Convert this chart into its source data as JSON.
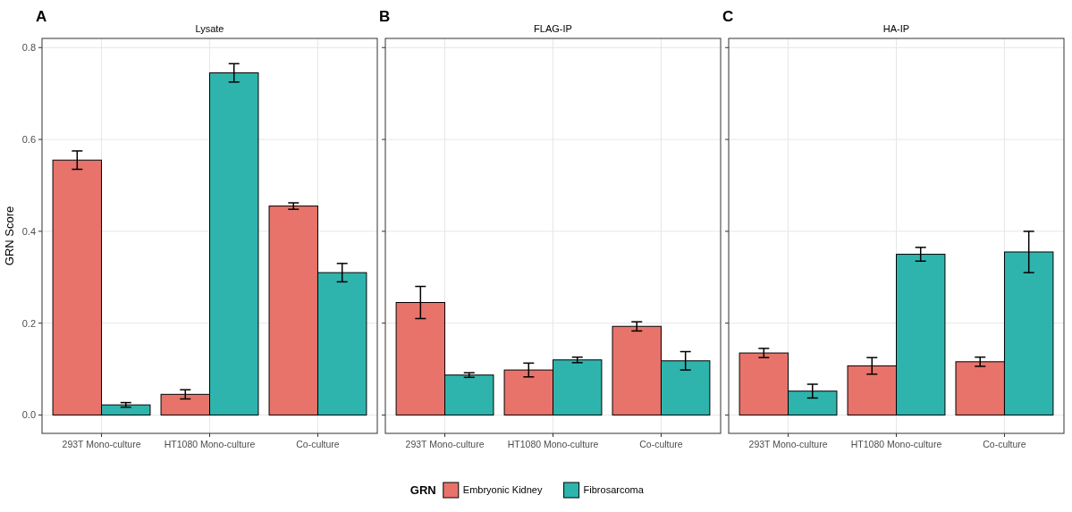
{
  "chart_data": [
    {
      "type": "bar",
      "title": "A",
      "subtitle": "Lysate",
      "ylabel": "GRN Score",
      "categories": [
        "293T Mono-culture",
        "HT1080 Mono-culture",
        "Co-culture"
      ],
      "ylim": [
        -0.04,
        0.82
      ],
      "yticks": [
        {
          "value": 0,
          "label": "0.0"
        },
        {
          "value": 0.2,
          "label": "0.2"
        },
        {
          "value": 0.4,
          "label": "0.4"
        },
        {
          "value": 0.6,
          "label": "0.6"
        },
        {
          "value": 0.8,
          "label": "0.8"
        }
      ],
      "grid": true,
      "legend": "bottom",
      "legend_title": "GRN",
      "series": [
        {
          "name": "Embryonic Kidney",
          "color": "#e8736a",
          "values": [
            0.555,
            0.045,
            0.455
          ],
          "errors": [
            [
              0.535,
              0.575
            ],
            [
              0.035,
              0.055
            ],
            [
              0.448,
              0.462
            ]
          ]
        },
        {
          "name": "Fibrosarcoma",
          "color": "#2fb4ad",
          "values": [
            0.022,
            0.745,
            0.31
          ],
          "errors": [
            [
              0.017,
              0.027
            ],
            [
              0.725,
              0.765
            ],
            [
              0.29,
              0.33
            ]
          ]
        }
      ]
    },
    {
      "type": "bar",
      "title": "B",
      "subtitle": "FLAG-IP",
      "categories": [
        "293T Mono-culture",
        "HT1080 Mono-culture",
        "Co-culture"
      ],
      "ylim": [
        -0.04,
        0.82
      ],
      "yticks": [
        {
          "value": 0,
          "label": null
        },
        {
          "value": 0.2,
          "label": null
        },
        {
          "value": 0.4,
          "label": null
        },
        {
          "value": 0.6,
          "label": null
        },
        {
          "value": 0.8,
          "label": null
        }
      ],
      "grid": true,
      "tick_labels": "x",
      "series": [
        {
          "color": "#e8736a",
          "values": [
            0.245,
            0.098,
            0.193
          ],
          "errors": [
            [
              0.21,
              0.28
            ],
            [
              0.083,
              0.113
            ],
            [
              0.183,
              0.203
            ]
          ]
        },
        {
          "color": "#2fb4ad",
          "values": [
            0.087,
            0.12,
            0.118
          ],
          "errors": [
            [
              0.082,
              0.092
            ],
            [
              0.114,
              0.126
            ],
            [
              0.098,
              0.138
            ]
          ]
        }
      ]
    },
    {
      "type": "bar",
      "title": "C",
      "subtitle": "HA-IP",
      "categories": [
        "293T Mono-culture",
        "HT1080 Mono-culture",
        "Co-culture"
      ],
      "ylim": [
        -0.04,
        0.82
      ],
      "yticks": [
        {
          "value": 0,
          "label": null
        },
        {
          "value": 0.2,
          "label": null
        },
        {
          "value": 0.4,
          "label": null
        },
        {
          "value": 0.6,
          "label": null
        },
        {
          "value": 0.8,
          "label": null
        }
      ],
      "grid": true,
      "tick_labels": "x",
      "series": [
        {
          "color": "#e8736a",
          "values": [
            0.135,
            0.107,
            0.116
          ],
          "errors": [
            [
              0.125,
              0.145
            ],
            [
              0.089,
              0.125
            ],
            [
              0.106,
              0.126
            ]
          ]
        },
        {
          "color": "#2fb4ad",
          "values": [
            0.052,
            0.35,
            0.355
          ],
          "errors": [
            [
              0.037,
              0.067
            ],
            [
              0.335,
              0.365
            ],
            [
              0.31,
              0.4
            ]
          ]
        }
      ]
    }
  ]
}
